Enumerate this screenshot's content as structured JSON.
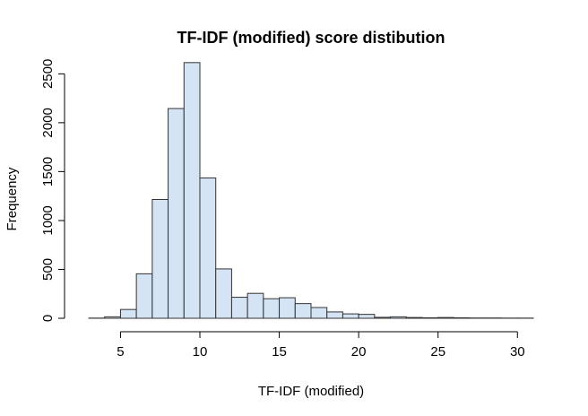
{
  "chart_data": {
    "type": "bar",
    "title": "TF-IDF (modified) score distibution",
    "xlabel": "TF-IDF (modified)",
    "ylabel": "Frequency",
    "bar_color": "#d4e4f4",
    "border_color": "#333333",
    "bin_width": 1,
    "bin_starts": [
      3,
      4,
      5,
      6,
      7,
      8,
      9,
      10,
      11,
      12,
      13,
      14,
      15,
      16,
      17,
      18,
      19,
      20,
      21,
      22,
      23,
      24,
      25,
      26,
      27,
      28,
      29,
      30
    ],
    "values": [
      2,
      15,
      90,
      455,
      1215,
      2145,
      2615,
      1435,
      505,
      215,
      255,
      200,
      210,
      150,
      110,
      65,
      45,
      40,
      10,
      15,
      8,
      5,
      8,
      5,
      3,
      3,
      2,
      2
    ],
    "xticks": [
      5,
      10,
      15,
      20,
      25,
      30
    ],
    "yticks": [
      0,
      500,
      1000,
      1500,
      2000,
      2500
    ],
    "xlim": [
      3,
      31
    ],
    "ylim": [
      0,
      2650
    ],
    "grid": false
  }
}
